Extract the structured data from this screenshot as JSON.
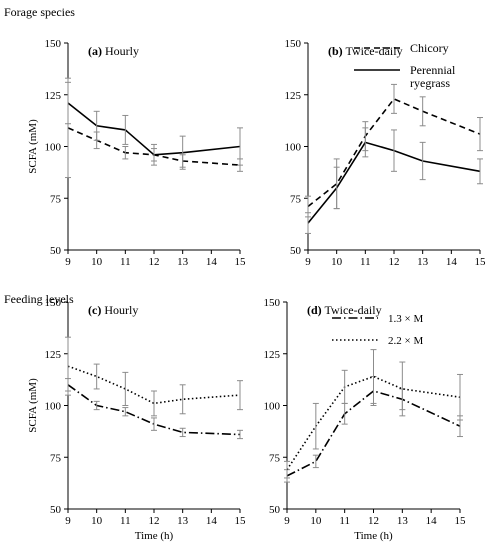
{
  "sections": {
    "forage": "Forage species",
    "feeding": "Feeding levels"
  },
  "chart_data": [
    {
      "type": "line",
      "panel_letter": "(a)",
      "panel_title": "Hourly",
      "ylabel": "SCFA (mM)",
      "xlabel": "",
      "xlim": [
        9,
        15
      ],
      "ylim": [
        50,
        150
      ],
      "x_ticks": [
        9,
        10,
        11,
        12,
        13,
        14,
        15
      ],
      "y_ticks": [
        50,
        75,
        100,
        125,
        150
      ],
      "x": [
        9,
        10,
        11,
        12,
        13,
        15
      ],
      "legend": "",
      "series": [
        {
          "name": "Chicory",
          "style": "dashed",
          "values": [
            109,
            103,
            97,
            96,
            93,
            91
          ],
          "err": [
            24,
            4,
            3,
            3,
            3,
            3
          ]
        },
        {
          "name": "Perennial ryegrass",
          "style": "solid",
          "values": [
            121,
            110,
            108,
            96,
            97,
            100
          ],
          "err": [
            10,
            7,
            7,
            5,
            8,
            9
          ]
        }
      ]
    },
    {
      "type": "line",
      "panel_letter": "(b)",
      "panel_title": "Twice-daily",
      "ylabel": "",
      "xlabel": "",
      "xlim": [
        9,
        15
      ],
      "ylim": [
        50,
        150
      ],
      "x_ticks": [
        9,
        10,
        11,
        12,
        13,
        14,
        15
      ],
      "y_ticks": [
        50,
        75,
        100,
        125,
        150
      ],
      "x": [
        9,
        10,
        11,
        12,
        13,
        15
      ],
      "legend": "top-right",
      "series": [
        {
          "name": "Chicory",
          "style": "dashed",
          "values": [
            71,
            82,
            105,
            123,
            117,
            106
          ],
          "err": [
            5,
            12,
            7,
            7,
            7,
            8
          ]
        },
        {
          "name": "Perennial ryegrass",
          "style": "solid",
          "values": [
            63,
            80,
            102,
            98,
            93,
            88
          ],
          "err": [
            5,
            10,
            7,
            10,
            9,
            6
          ]
        }
      ]
    },
    {
      "type": "line",
      "panel_letter": "(c)",
      "panel_title": "Hourly",
      "ylabel": "SCFA (mM)",
      "xlabel": "Time (h)",
      "xlim": [
        9,
        15
      ],
      "ylim": [
        50,
        150
      ],
      "x_ticks": [
        9,
        10,
        11,
        12,
        13,
        14,
        15
      ],
      "y_ticks": [
        50,
        75,
        100,
        125,
        150
      ],
      "x": [
        9,
        10,
        11,
        12,
        13,
        15
      ],
      "legend": "",
      "series": [
        {
          "name": "1.3 × M",
          "style": "dashdot",
          "values": [
            110,
            100,
            97,
            91,
            87,
            86
          ],
          "err": [
            3,
            2,
            2,
            3,
            2,
            2
          ]
        },
        {
          "name": "2.2 × M",
          "style": "dotted",
          "values": [
            119,
            114,
            108,
            101,
            103,
            105
          ],
          "err": [
            14,
            6,
            8,
            6,
            7,
            7
          ]
        }
      ]
    },
    {
      "type": "line",
      "panel_letter": "(d)",
      "panel_title": "Twice-daily",
      "ylabel": "",
      "xlabel": "Time (h)",
      "xlim": [
        9,
        15
      ],
      "ylim": [
        50,
        150
      ],
      "x_ticks": [
        9,
        10,
        11,
        12,
        13,
        14,
        15
      ],
      "y_ticks": [
        50,
        75,
        100,
        125,
        150
      ],
      "x": [
        9,
        10,
        11,
        12,
        13,
        15
      ],
      "legend": "top-right",
      "series": [
        {
          "name": "1.3 × M",
          "style": "dashdot",
          "values": [
            66,
            73,
            96,
            107,
            103,
            90
          ],
          "err": [
            3,
            3,
            5,
            7,
            5,
            5
          ]
        },
        {
          "name": "2.2 × M",
          "style": "dotted",
          "values": [
            69,
            90,
            109,
            114,
            108,
            104
          ],
          "err": [
            4,
            11,
            8,
            13,
            13,
            11
          ]
        }
      ]
    }
  ]
}
